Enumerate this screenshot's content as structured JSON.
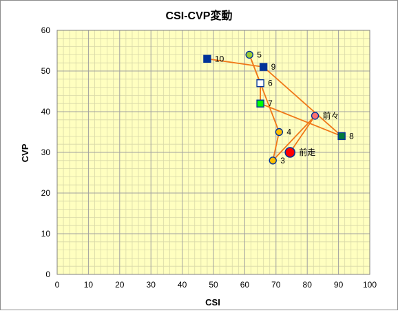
{
  "chart_data": {
    "type": "scatter",
    "title": "CSI-CVP変動",
    "xlabel": "CSI",
    "ylabel": "CVP",
    "xlim": [
      0,
      100
    ],
    "ylim": [
      0,
      60
    ],
    "xticks": [
      0,
      10,
      20,
      30,
      40,
      50,
      60,
      70,
      80,
      90,
      100
    ],
    "yticks": [
      0,
      10,
      20,
      30,
      40,
      50,
      60
    ],
    "grid": true,
    "colors": {
      "plot_bg": "#ffffc0",
      "major_grid": "#a0a0a0",
      "minor_grid": "#d8d8a8",
      "line": "#f07818",
      "navy": "#003399",
      "orange_fill": "#ffc000",
      "red_fill": "#ff0000",
      "salmon_fill": "#ff7070",
      "olive_fill": "#99cc33",
      "green_fill": "#00ff00",
      "dkgreen_fill": "#007a3d",
      "white_fill": "#ffffff"
    },
    "points": [
      {
        "label": "前走",
        "x": 74.5,
        "y": 30,
        "marker": "circle-large",
        "fill": "#ff0000"
      },
      {
        "label": "前々",
        "x": 82.5,
        "y": 39,
        "marker": "circle",
        "fill": "#ff7070"
      },
      {
        "label": "3",
        "x": 69,
        "y": 28,
        "marker": "circle",
        "fill": "#ffc000"
      },
      {
        "label": "4",
        "x": 71,
        "y": 35,
        "marker": "circle",
        "fill": "#ffc000"
      },
      {
        "label": "5",
        "x": 61.5,
        "y": 54,
        "marker": "circle",
        "fill": "#99cc33"
      },
      {
        "label": "6",
        "x": 65,
        "y": 47,
        "marker": "square",
        "fill": "#ffffff"
      },
      {
        "label": "7",
        "x": 65,
        "y": 42,
        "marker": "square",
        "fill": "#00ff00"
      },
      {
        "label": "8",
        "x": 91,
        "y": 34,
        "marker": "square",
        "fill": "#007a3d"
      },
      {
        "label": "9",
        "x": 66,
        "y": 51,
        "marker": "square",
        "fill": "#003399"
      },
      {
        "label": "10",
        "x": 48,
        "y": 53,
        "marker": "square",
        "fill": "#003399"
      }
    ],
    "path_order": [
      "前走",
      "前々",
      "3",
      "4",
      "5",
      "6",
      "7",
      "8",
      "9",
      "10"
    ]
  }
}
